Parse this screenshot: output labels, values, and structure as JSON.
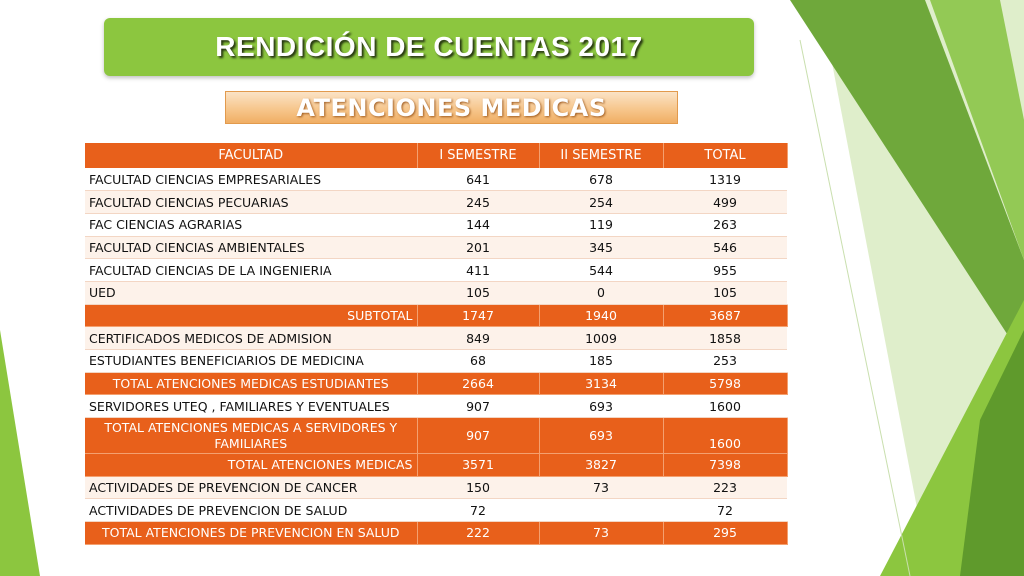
{
  "header": {
    "title": "RENDICIÓN DE CUENTAS 2017",
    "subtitle": "ATENCIONES MEDICAS"
  },
  "colors": {
    "title_bg": "#8cc63f",
    "table_header_bg": "#e8601b",
    "subtitle_bg": "#f6c488"
  },
  "table": {
    "columns": [
      "FACULTAD",
      "I SEMESTRE",
      "II SEMESTRE",
      "TOTAL"
    ],
    "rows": [
      {
        "name": "FACULTAD CIENCIAS EMPRESARIALES",
        "s1": "641",
        "s2": "678",
        "total": "1319"
      },
      {
        "name": "FACULTAD CIENCIAS PECUARIAS",
        "s1": "245",
        "s2": "254",
        "total": "499"
      },
      {
        "name": "FAC CIENCIAS AGRARIAS",
        "s1": "144",
        "s2": "119",
        "total": "263"
      },
      {
        "name": "FACULTAD CIENCIAS AMBIENTALES",
        "s1": "201",
        "s2": "345",
        "total": "546"
      },
      {
        "name": "FACULTAD CIENCIAS DE LA INGENIERIA",
        "s1": "411",
        "s2": "544",
        "total": "955"
      },
      {
        "name": "UED",
        "s1": "105",
        "s2": "0",
        "total": "105"
      },
      {
        "name": "SUBTOTAL",
        "s1": "1747",
        "s2": "1940",
        "total": "3687"
      },
      {
        "name": "CERTIFICADOS MEDICOS DE ADMISION",
        "s1": "849",
        "s2": "1009",
        "total": "1858"
      },
      {
        "name": "ESTUDIANTES BENEFICIARIOS DE MEDICINA",
        "s1": "68",
        "s2": "185",
        "total": "253"
      },
      {
        "name": "TOTAL ATENCIONES MEDICAS ESTUDIANTES",
        "s1": "2664",
        "s2": "3134",
        "total": "5798"
      },
      {
        "name": "SERVIDORES UTEQ , FAMILIARES Y EVENTUALES",
        "s1": "907",
        "s2": "693",
        "total": "1600"
      },
      {
        "name": "TOTAL ATENCIONES MEDICAS A SERVIDORES Y FAMILIARES",
        "s1": "907",
        "s2": "693",
        "total": "1600"
      },
      {
        "name": "TOTAL ATENCIONES MEDICAS",
        "s1": "3571",
        "s2": "3827",
        "total": "7398"
      },
      {
        "name": "ACTIVIDADES DE PREVENCION DE CANCER",
        "s1": "150",
        "s2": "73",
        "total": "223"
      },
      {
        "name": "ACTIVIDADES DE PREVENCION DE SALUD",
        "s1": "72",
        "s2": "",
        "total": "72"
      },
      {
        "name": "TOTAL ATENCIONES DE PREVENCION EN SALUD",
        "s1": "222",
        "s2": "73",
        "total": "295"
      }
    ]
  }
}
